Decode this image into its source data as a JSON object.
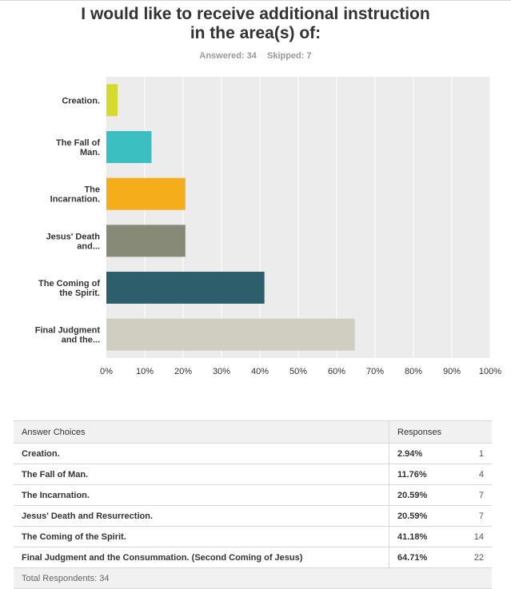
{
  "question": {
    "title_line1": "I would like to receive additional instruction",
    "title_line2": "in the area(s) of:",
    "answered": "Answered: 34",
    "skipped": "Skipped: 7"
  },
  "chart_data": {
    "type": "bar",
    "orientation": "horizontal",
    "categories": [
      [
        "Creation."
      ],
      [
        "The Fall of",
        "Man."
      ],
      [
        "The",
        "Incarnation."
      ],
      [
        "Jesus' Death",
        "and..."
      ],
      [
        "The Coming of",
        "the Spirit."
      ],
      [
        "Final Judgment",
        "and the..."
      ]
    ],
    "values": [
      2.94,
      11.76,
      20.59,
      20.59,
      41.18,
      64.71
    ],
    "colors": [
      "#d5db2d",
      "#3bbfc0",
      "#f6ad1c",
      "#888a78",
      "#2c5f6b",
      "#cfcec0"
    ],
    "xlim": [
      0,
      100
    ],
    "x_ticks": [
      "0%",
      "10%",
      "20%",
      "30%",
      "40%",
      "50%",
      "60%",
      "70%",
      "80%",
      "90%",
      "100%"
    ],
    "grid": true,
    "plot_background": "#ececec"
  },
  "table": {
    "header_choice": "Answer Choices",
    "header_responses": "Responses",
    "rows": [
      {
        "choice": "Creation.",
        "pct": "2.94%",
        "count": "1"
      },
      {
        "choice": "The Fall of Man.",
        "pct": "11.76%",
        "count": "4"
      },
      {
        "choice": "The Incarnation.",
        "pct": "20.59%",
        "count": "7"
      },
      {
        "choice": "Jesus' Death and Resurrection.",
        "pct": "20.59%",
        "count": "7"
      },
      {
        "choice": "The Coming of the Spirit.",
        "pct": "41.18%",
        "count": "14"
      },
      {
        "choice": "Final Judgment and the Consummation. (Second Coming of Jesus)",
        "pct": "64.71%",
        "count": "22"
      }
    ],
    "total": "Total Respondents: 34"
  }
}
